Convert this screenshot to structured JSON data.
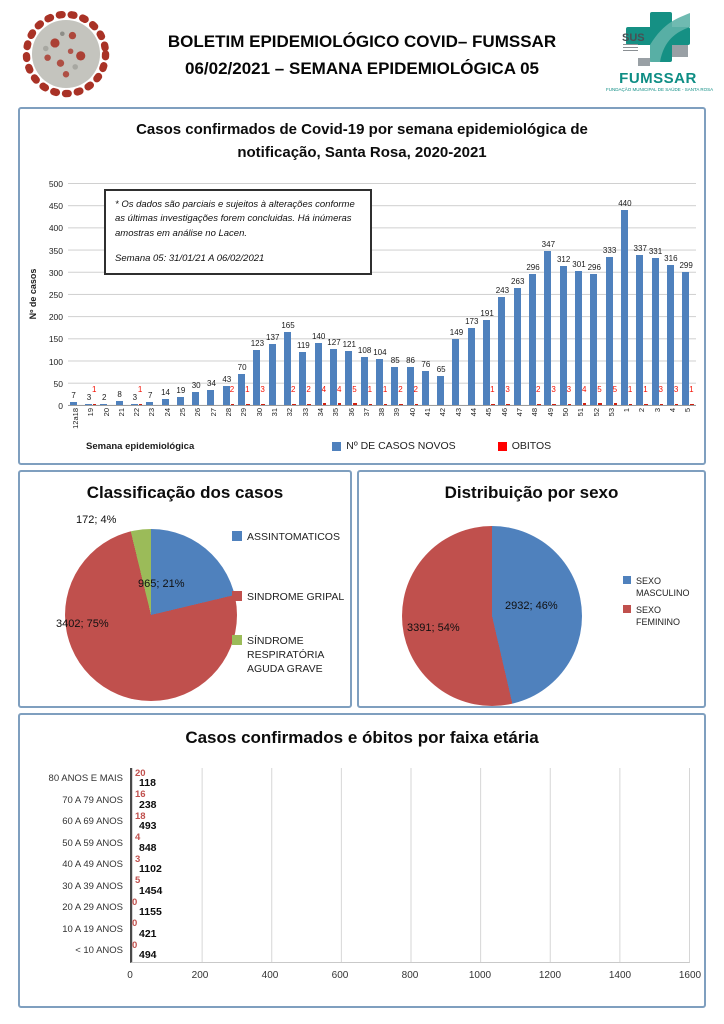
{
  "header": {
    "title_line1": "BOLETIM EPIDEMIOLÓGICO COVID– FUMSSAR",
    "title_line2": "06/02/2021 – SEMANA EPIDEMIOLÓGICA 05",
    "logo": {
      "sus": "SUS",
      "name": "FUMSSAR",
      "tagline": "FUNDAÇÃO MUNICIPAL DE SAÚDE - SANTA ROSA"
    }
  },
  "chart_data": [
    {
      "id": "weekly_cases",
      "type": "bar",
      "title": "Casos confirmados de Covid-19 por semana epidemiológica de notificação, Santa Rosa, 2020-2021",
      "xlabel": "Semana epidemiológica",
      "ylabel": "Nº de casos",
      "ylim": [
        0,
        500
      ],
      "ytick_step": 50,
      "grid": true,
      "legend_position": "bottom",
      "annotation": "* Os dados são parciais e sujeitos à alterações conforme as últimas investigações forem concluidas. Há inúmeras amostras em análise no Lacen.",
      "annotation_line2": "Semana 05: 31/01/21 A 06/02/2021",
      "categories": [
        "12a18",
        "19",
        "20",
        "21",
        "22",
        "23",
        "24",
        "25",
        "26",
        "27",
        "28",
        "29",
        "30",
        "31",
        "32",
        "33",
        "34",
        "35",
        "36",
        "37",
        "38",
        "39",
        "40",
        "41",
        "42",
        "43",
        "44",
        "45",
        "46",
        "47",
        "48",
        "49",
        "50",
        "51",
        "52",
        "53",
        "1",
        "2",
        "3",
        "4",
        "5"
      ],
      "series": [
        {
          "name": "Nº DE CASOS NOVOS",
          "color": "#4F81BD",
          "values": [
            7,
            3,
            2,
            8,
            3,
            7,
            14,
            19,
            30,
            34,
            43,
            70,
            123,
            137,
            165,
            119,
            140,
            127,
            121,
            108,
            104,
            85,
            86,
            76,
            65,
            149,
            173,
            191,
            243,
            263,
            296,
            347,
            312,
            301,
            296,
            333,
            440,
            337,
            331,
            316,
            299
          ]
        },
        {
          "name": "OBITOS",
          "color": "#FF0000",
          "values": [
            0,
            1,
            0,
            0,
            1,
            0,
            0,
            0,
            0,
            0,
            2,
            1,
            3,
            0,
            2,
            2,
            4,
            4,
            5,
            1,
            1,
            2,
            2,
            0,
            0,
            0,
            0,
            1,
            3,
            0,
            2,
            3,
            3,
            4,
            5,
            5,
            1,
            1,
            3,
            3,
            1
          ]
        }
      ]
    },
    {
      "id": "classification",
      "type": "pie",
      "title": "Classificação dos casos",
      "slices": [
        {
          "label": "ASSINTOMATICOS",
          "value": 965,
          "pct": 21,
          "color": "#4F81BD",
          "data_label": "965; 21%"
        },
        {
          "label": "SINDROME GRIPAL",
          "value": 3402,
          "pct": 75,
          "color": "#C0504D",
          "data_label": "3402; 75%"
        },
        {
          "label": "SÍNDROME RESPIRATÓRIA AGUDA GRAVE",
          "value": 172,
          "pct": 4,
          "color": "#9BBB59",
          "data_label": "172; 4%"
        }
      ]
    },
    {
      "id": "sex_distribution",
      "type": "pie",
      "title": "Distribuição por sexo",
      "slices": [
        {
          "label": "SEXO MASCULINO",
          "value": 2932,
          "pct": 46,
          "color": "#4F81BD",
          "data_label": "2932; 46%"
        },
        {
          "label": "SEXO FEMININO",
          "value": 3391,
          "pct": 54,
          "color": "#C0504D",
          "data_label": "3391; 54%"
        }
      ]
    },
    {
      "id": "age_groups",
      "type": "bar",
      "orientation": "horizontal",
      "title": "Casos confirmados e óbitos  por faixa etária",
      "xlim": [
        0,
        1600
      ],
      "xtick_step": 200,
      "grid": true,
      "categories": [
        "80 ANOS E MAIS",
        "70 A 79 ANOS",
        "60 A 69 ANOS",
        "50 A 59 ANOS",
        "40 A 49 ANOS",
        "30 A 39 ANOS",
        "20 A 29 ANOS",
        "10 A 19 ANOS",
        "< 10 ANOS"
      ],
      "series": [
        {
          "name": "óbitos",
          "color": "#C0504D",
          "values": [
            20,
            16,
            18,
            4,
            3,
            5,
            0,
            0,
            0
          ]
        },
        {
          "name": "casos confirmados",
          "color": "#4F81BD",
          "values": [
            118,
            238,
            493,
            848,
            1102,
            1454,
            1155,
            421,
            494
          ]
        }
      ]
    }
  ]
}
